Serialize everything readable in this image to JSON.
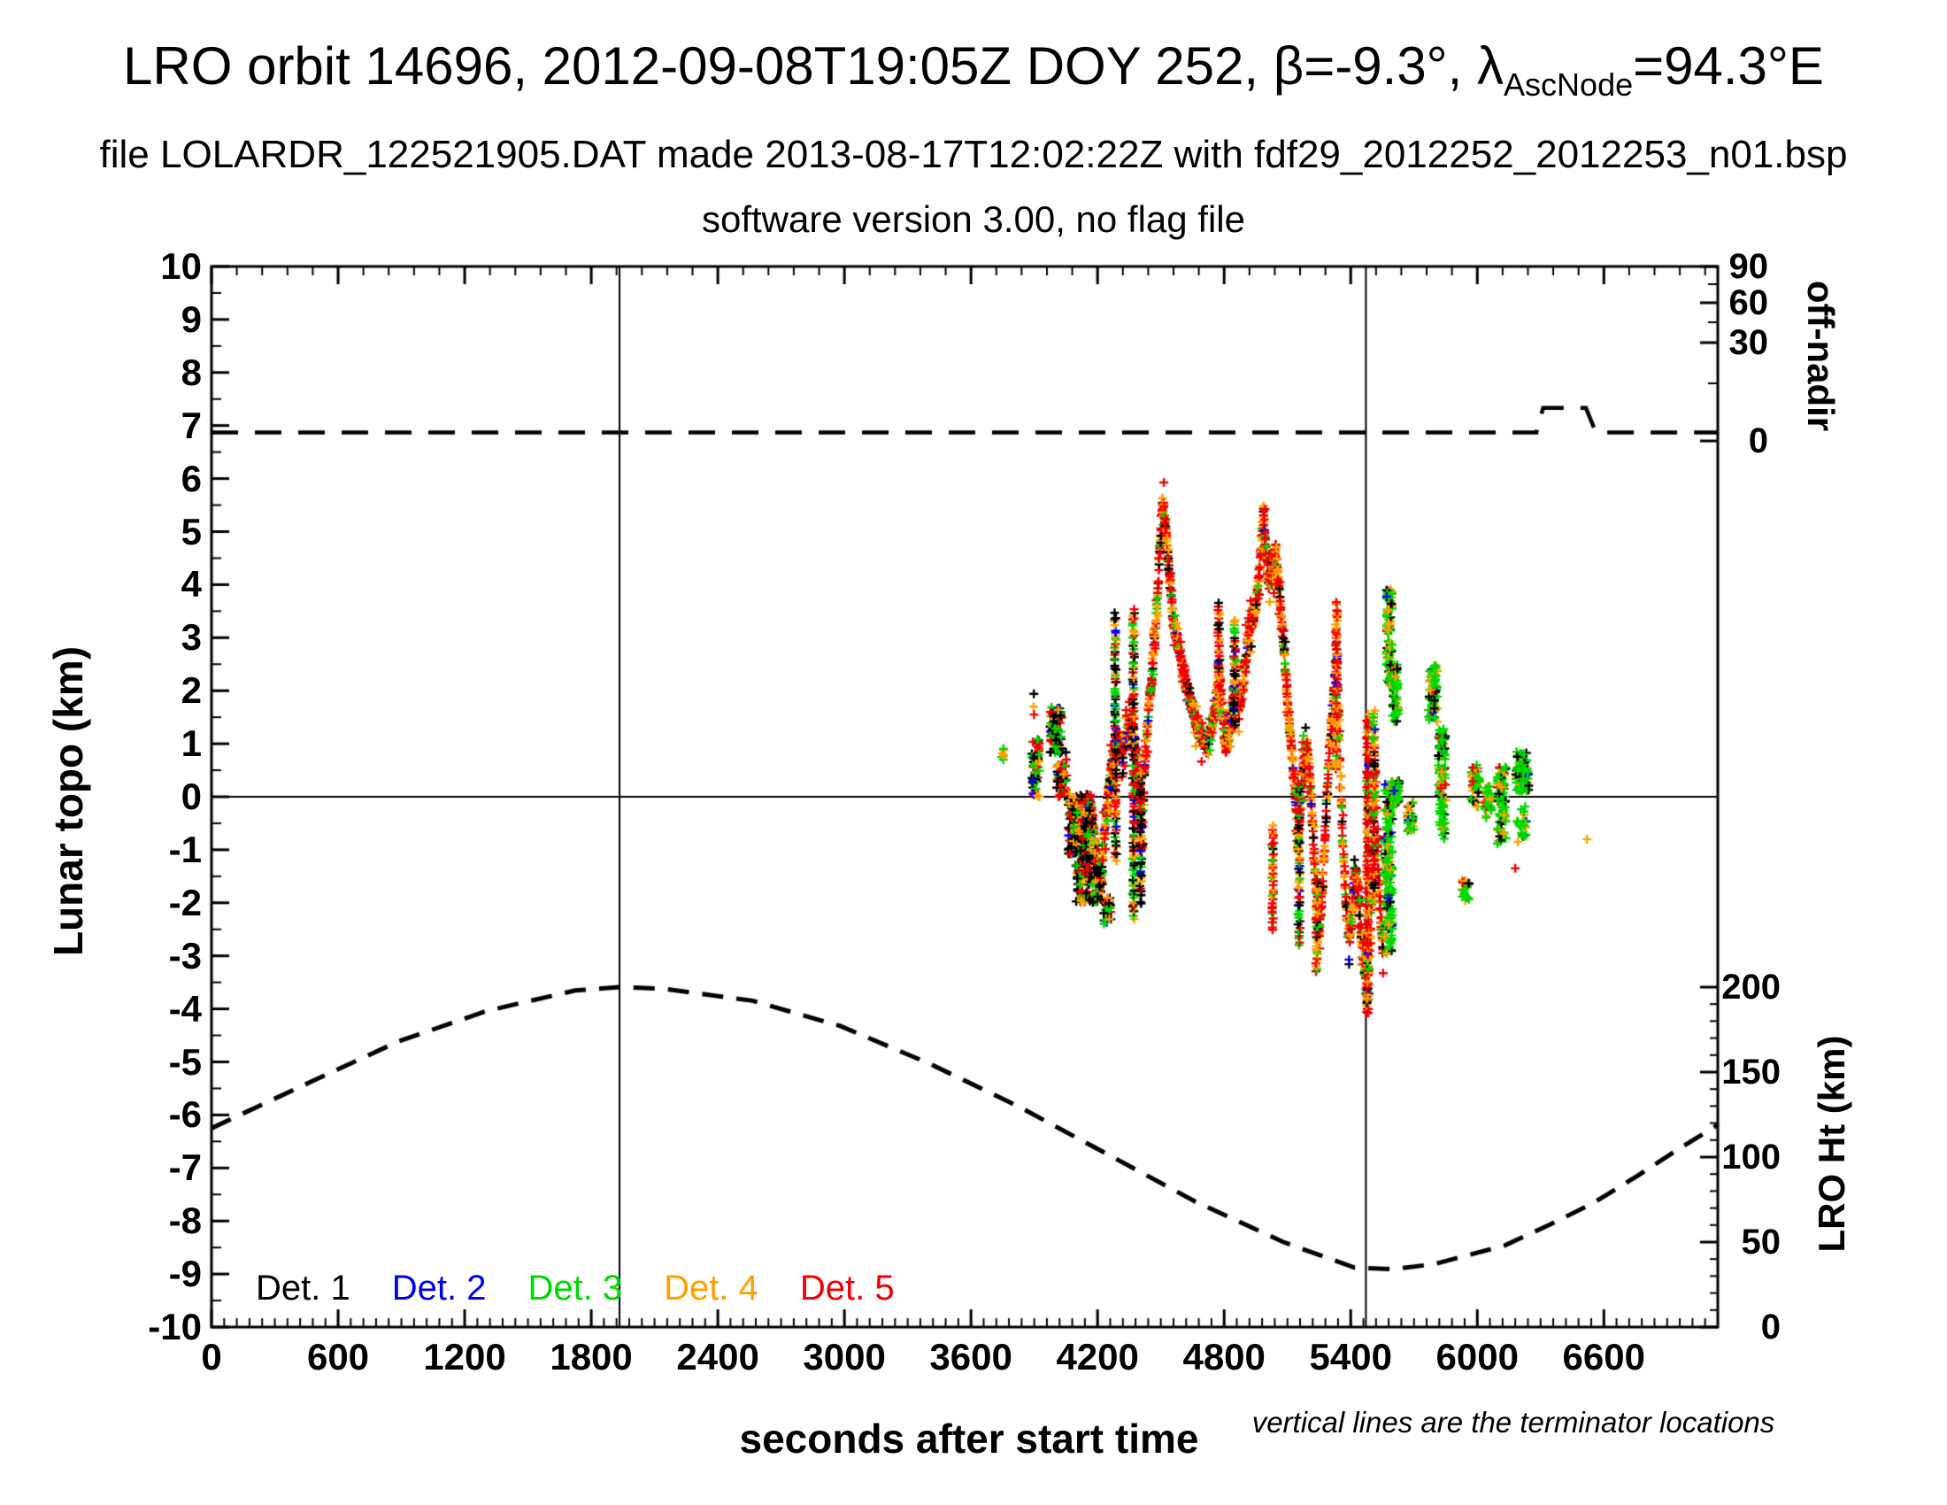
{
  "header": {
    "title_prefix": "LRO orbit 14696, 2012-09-08T19:05Z DOY 252, β=-9.3°, λ",
    "title_sub": "AscNode",
    "title_suffix": "=94.3°E",
    "subtitle1": "file LOLARDR_122521905.DAT made 2013-08-17T12:02:22Z with fdf29_2012252_2012253_n01.bsp",
    "subtitle2": "software version 3.00, no flag file"
  },
  "footnote": "vertical lines are the terminator locations",
  "legend": {
    "items": [
      {
        "label": "Det. 1",
        "color": "#000000"
      },
      {
        "label": "Det. 2",
        "color": "#0000f0"
      },
      {
        "label": "Det. 3",
        "color": "#00d800"
      },
      {
        "label": "Det. 4",
        "color": "#ffa000"
      },
      {
        "label": "Det. 5",
        "color": "#f00000"
      }
    ]
  },
  "chart_data": {
    "type": "scatter",
    "x_axis": {
      "label": "seconds after start time",
      "min": 0,
      "max": 7140,
      "major_tick": 600,
      "minor_tick_bottom": 60,
      "minor_tick_top": 120,
      "tick_labels": [
        "0",
        "600",
        "1200",
        "1800",
        "2400",
        "3000",
        "3600",
        "4200",
        "4800",
        "5400",
        "6000",
        "6600"
      ],
      "tick_values": [
        0,
        600,
        1200,
        1800,
        2400,
        3000,
        3600,
        4200,
        4800,
        5400,
        6000,
        6600
      ]
    },
    "y_left": {
      "label": "Lunar topo (km)",
      "min": -10,
      "max": 10,
      "major_tick": 1,
      "minor_tick": 0.5,
      "tick_labels": [
        "10",
        "9",
        "8",
        "7",
        "6",
        "5",
        "4",
        "3",
        "2",
        "1",
        "0",
        "-1",
        "-2",
        "-3",
        "-4",
        "-5",
        "-6",
        "-7",
        "-8",
        "-9",
        "-10"
      ],
      "tick_values": [
        10,
        9,
        8,
        7,
        6,
        5,
        4,
        3,
        2,
        1,
        0,
        -1,
        -2,
        -3,
        -4,
        -5,
        -6,
        -7,
        -8,
        -9,
        -10
      ]
    },
    "y_right_off_nadir": {
      "label": "off-nadir",
      "tick_labels": [
        "90",
        "60",
        "30",
        "0"
      ],
      "tick_values": [
        90,
        60,
        30,
        0
      ],
      "tick_pos_frac": [
        [
          90,
          0.0
        ],
        [
          75,
          0.0167
        ],
        [
          60,
          0.0342
        ],
        [
          45,
          0.0526
        ],
        [
          30,
          0.0718
        ],
        [
          15,
          0.1102
        ],
        [
          0,
          0.1645
        ]
      ],
      "minor_tick_values": [
        75,
        45,
        15
      ]
    },
    "y_right_lro_ht": {
      "label": "LRO Ht (km)",
      "tick_labels": [
        "200",
        "150",
        "100",
        "50",
        "0"
      ],
      "tick_values": [
        200,
        150,
        100,
        50,
        0
      ],
      "km_span_of_plot_height": 624,
      "minor_tick_km": 10
    },
    "terminator_lines_t": [
      1934,
      5472
    ],
    "zero_line_topo": 0,
    "off_nadir_line_deg": {
      "points_t_deg": [
        [
          0,
          2.2
        ],
        [
          6280,
          2.2
        ],
        [
          6312,
          8.6
        ],
        [
          6515,
          8.6
        ],
        [
          6562,
          2.2
        ],
        [
          7140,
          2.2
        ]
      ]
    },
    "lro_ht_line_km": [
      [
        0,
        117
      ],
      [
        466,
        144
      ],
      [
        885,
        168
      ],
      [
        1305,
        186
      ],
      [
        1724,
        198
      ],
      [
        1934,
        200
      ],
      [
        2144,
        199
      ],
      [
        2564,
        192
      ],
      [
        2983,
        177
      ],
      [
        3403,
        155
      ],
      [
        3822,
        130
      ],
      [
        4242,
        102
      ],
      [
        4661,
        74
      ],
      [
        5081,
        50
      ],
      [
        5417,
        35
      ],
      [
        5600,
        34
      ],
      [
        5794,
        37
      ],
      [
        6130,
        48
      ],
      [
        6340,
        60
      ],
      [
        6550,
        73
      ],
      [
        6760,
        89
      ],
      [
        6970,
        106
      ],
      [
        7141,
        119
      ]
    ],
    "palette": {
      "black": "#000000",
      "blue": "#0000f0",
      "green": "#00d800",
      "orange": "#ffa000",
      "red": "#f00000"
    },
    "color_weights": {
      "ribbon": [
        [
          "red",
          0.5
        ],
        [
          "orange",
          0.3
        ],
        [
          "green",
          0.1
        ],
        [
          "black",
          0.07
        ],
        [
          "blue",
          0.03
        ]
      ],
      "mixed_dark": [
        [
          "black",
          0.38
        ],
        [
          "red",
          0.21
        ],
        [
          "orange",
          0.16
        ],
        [
          "green",
          0.19
        ],
        [
          "blue",
          0.06
        ]
      ],
      "green_mix": [
        [
          "green",
          0.6
        ],
        [
          "orange",
          0.21
        ],
        [
          "black",
          0.13
        ],
        [
          "red",
          0.04
        ],
        [
          "blue",
          0.02
        ]
      ]
    },
    "topo_ribbon_anchors": [
      [
        4170,
        -0.2
      ],
      [
        4185,
        -0.7
      ],
      [
        4200,
        -1.5
      ],
      [
        4215,
        -1.8
      ],
      [
        4230,
        -0.8
      ],
      [
        4245,
        -0.2
      ],
      [
        4260,
        0.4
      ],
      [
        4280,
        0.8
      ],
      [
        4300,
        1.1
      ],
      [
        4320,
        0.8
      ],
      [
        4340,
        1.2
      ],
      [
        4360,
        1.5
      ],
      [
        4380,
        0.9
      ],
      [
        4400,
        0.0
      ],
      [
        4410,
        -1.2
      ],
      [
        4420,
        0.3
      ],
      [
        4440,
        1.6
      ],
      [
        4460,
        2.4
      ],
      [
        4480,
        3.4
      ],
      [
        4495,
        4.6
      ],
      [
        4510,
        5.6
      ],
      [
        4525,
        5.0
      ],
      [
        4540,
        4.2
      ],
      [
        4560,
        3.3
      ],
      [
        4580,
        2.9
      ],
      [
        4600,
        2.5
      ],
      [
        4620,
        2.1
      ],
      [
        4640,
        1.8
      ],
      [
        4660,
        1.5
      ],
      [
        4680,
        1.3
      ],
      [
        4700,
        1.1
      ],
      [
        4720,
        1.0
      ],
      [
        4740,
        1.3
      ],
      [
        4760,
        1.7
      ],
      [
        4775,
        2.5
      ],
      [
        4790,
        1.6
      ],
      [
        4810,
        0.9
      ],
      [
        4830,
        1.4
      ],
      [
        4850,
        2.3
      ],
      [
        4870,
        1.7
      ],
      [
        4890,
        2.1
      ],
      [
        4910,
        2.9
      ],
      [
        4930,
        3.3
      ],
      [
        4950,
        3.6
      ],
      [
        4970,
        4.4
      ],
      [
        4985,
        5.3
      ],
      [
        5000,
        4.6
      ],
      [
        5015,
        4.0
      ],
      [
        5030,
        4.3
      ],
      [
        5047,
        4.6
      ],
      [
        5060,
        3.9
      ],
      [
        5075,
        3.2
      ],
      [
        5090,
        2.4
      ],
      [
        5105,
        1.6
      ],
      [
        5120,
        0.9
      ],
      [
        5135,
        0.2
      ],
      [
        5150,
        -0.9
      ],
      [
        5160,
        -0.2
      ],
      [
        5175,
        0.6
      ],
      [
        5190,
        1.0
      ],
      [
        5205,
        0.4
      ],
      [
        5220,
        -0.6
      ],
      [
        5235,
        -1.6
      ],
      [
        5250,
        -2.6
      ],
      [
        5265,
        -1.8
      ],
      [
        5280,
        -0.6
      ],
      [
        5295,
        0.6
      ],
      [
        5310,
        1.4
      ],
      [
        5325,
        2.2
      ],
      [
        5333,
        3.0
      ],
      [
        5345,
        1.2
      ],
      [
        5360,
        -0.6
      ],
      [
        5375,
        -1.8
      ],
      [
        5390,
        -2.7
      ],
      [
        5405,
        -2.3
      ],
      [
        5420,
        -1.3
      ],
      [
        5435,
        -1.8
      ],
      [
        5450,
        -2.6
      ],
      [
        5465,
        -3.3
      ],
      [
        5480,
        -3.9
      ],
      [
        5495,
        -2.4
      ],
      [
        5505,
        -0.6
      ],
      [
        5515,
        0.8
      ],
      [
        5525,
        -0.8
      ],
      [
        5540,
        -2.2
      ],
      [
        5555,
        -3.0
      ]
    ],
    "ribbon_sigma_km": 0.26,
    "columns": [
      {
        "t": 4285,
        "lo": -1.2,
        "hi": 3.5,
        "w": "mixed_dark"
      },
      {
        "t": 4370,
        "lo": -2.3,
        "hi": 3.6,
        "w": "mixed_dark"
      },
      {
        "t": 4405,
        "lo": -2.0,
        "hi": 0.5,
        "w": "mixed_dark"
      },
      {
        "t": 4775,
        "lo": 1.5,
        "hi": 3.7,
        "w": "ribbon"
      },
      {
        "t": 4850,
        "lo": 1.3,
        "hi": 3.4,
        "w": "mixed_dark"
      },
      {
        "t": 5030,
        "lo": -2.5,
        "hi": -0.5,
        "w": "ribbon"
      },
      {
        "t": 5155,
        "lo": -2.8,
        "hi": 0.3,
        "w": "mixed_dark"
      },
      {
        "t": 5240,
        "lo": -3.3,
        "hi": -1.5,
        "w": "ribbon"
      },
      {
        "t": 5333,
        "lo": 0.5,
        "hi": 3.7,
        "w": "ribbon"
      },
      {
        "t": 5480,
        "lo": -4.1,
        "hi": 1.6,
        "w": "ribbon"
      },
      {
        "t": 5510,
        "lo": -2.0,
        "hi": 1.7,
        "w": "ribbon"
      }
    ],
    "clusters": [
      {
        "t0": 3740,
        "t1": 3762,
        "lo": 0.68,
        "hi": 0.92,
        "n": 7,
        "w": "green_mix"
      },
      {
        "t0": 3888,
        "t1": 3925,
        "lo": 0.0,
        "hi": 1.1,
        "n": 60,
        "w": "mixed_dark"
      },
      {
        "t0": 3975,
        "t1": 4030,
        "lo": 0.8,
        "hi": 1.7,
        "n": 80,
        "w": "mixed_dark"
      },
      {
        "t0": 4005,
        "t1": 4055,
        "lo": 0.0,
        "hi": 0.6,
        "n": 60,
        "w": "mixed_dark"
      },
      {
        "t0": 4060,
        "t1": 4175,
        "lo": -1.1,
        "hi": 0.05,
        "n": 190,
        "w": "mixed_dark"
      },
      {
        "t0": 4095,
        "t1": 4225,
        "lo": -2.0,
        "hi": -1.0,
        "n": 130,
        "w": "mixed_dark"
      },
      {
        "t0": 4228,
        "t1": 4266,
        "lo": -2.4,
        "hi": -1.9,
        "n": 26,
        "w": "mixed_dark"
      },
      {
        "t0": 5560,
        "t1": 5600,
        "lo": -3.0,
        "hi": 0.3,
        "n": 150,
        "w": "green_mix"
      },
      {
        "t0": 5568,
        "t1": 5596,
        "lo": 2.1,
        "hi": 3.9,
        "n": 95,
        "w": "green_mix"
      },
      {
        "t0": 5598,
        "t1": 5626,
        "lo": 1.4,
        "hi": 2.5,
        "n": 55,
        "w": "green_mix"
      },
      {
        "t0": 5600,
        "t1": 5630,
        "lo": -0.2,
        "hi": 0.3,
        "n": 42,
        "w": "green_mix"
      },
      {
        "t0": 5665,
        "t1": 5700,
        "lo": -0.7,
        "hi": -0.1,
        "n": 30,
        "w": "green_mix"
      },
      {
        "t0": 5768,
        "t1": 5812,
        "lo": 1.4,
        "hi": 2.5,
        "n": 70,
        "w": "green_mix"
      },
      {
        "t0": 5815,
        "t1": 5850,
        "lo": 0.7,
        "hi": 1.3,
        "n": 46,
        "w": "green_mix"
      },
      {
        "t0": 5815,
        "t1": 5852,
        "lo": -0.1,
        "hi": 0.6,
        "n": 40,
        "w": "green_mix"
      },
      {
        "t0": 5820,
        "t1": 5850,
        "lo": -0.8,
        "hi": -0.1,
        "n": 26,
        "w": "green_mix"
      },
      {
        "t0": 5928,
        "t1": 5962,
        "lo": -2.0,
        "hi": -1.55,
        "n": 26,
        "w": "green_mix"
      },
      {
        "t0": 5968,
        "t1": 6012,
        "lo": -0.2,
        "hi": 0.6,
        "n": 44,
        "w": "green_mix"
      },
      {
        "t0": 6033,
        "t1": 6066,
        "lo": -0.4,
        "hi": 0.2,
        "n": 34,
        "w": "green_mix"
      },
      {
        "t0": 6093,
        "t1": 6136,
        "lo": -0.9,
        "hi": 0.6,
        "n": 90,
        "w": "green_mix"
      },
      {
        "t0": 6183,
        "t1": 6246,
        "lo": 0.1,
        "hi": 0.85,
        "n": 100,
        "w": "green_mix"
      },
      {
        "t0": 6188,
        "t1": 6232,
        "lo": -0.9,
        "hi": -0.1,
        "n": 24,
        "w": "green_mix"
      }
    ],
    "singles": [
      [
        3898,
        1.94,
        "black"
      ],
      [
        3897,
        1.7,
        "orange"
      ],
      [
        3899,
        1.55,
        "red"
      ],
      [
        4050,
        0.84,
        "black"
      ],
      [
        4052,
        0.7,
        "red"
      ],
      [
        5978,
        0.55,
        "red"
      ],
      [
        6180,
        -1.35,
        "red"
      ],
      [
        6520,
        -0.8,
        "orange"
      ]
    ]
  }
}
